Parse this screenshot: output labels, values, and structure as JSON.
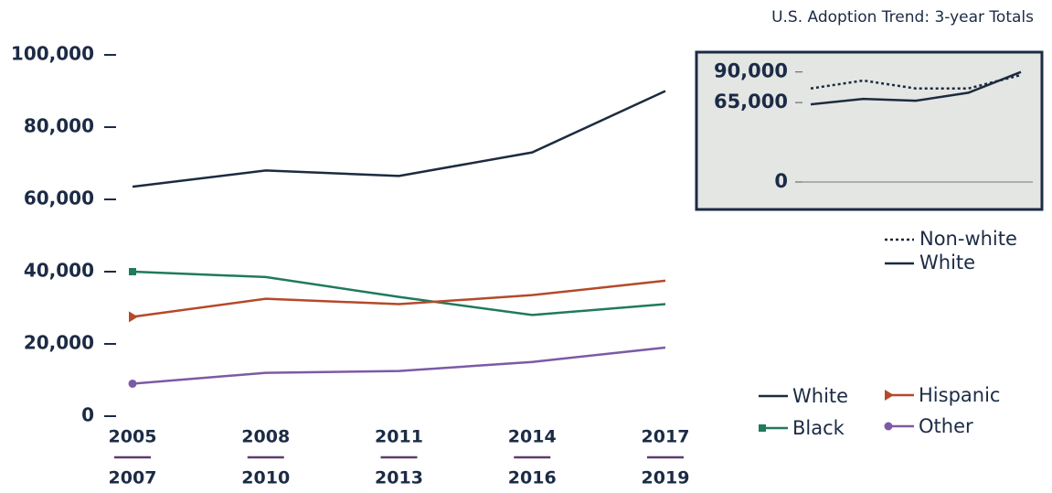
{
  "chart_data": [
    {
      "type": "line",
      "categories": [
        [
          "2005",
          "2007"
        ],
        [
          "2008",
          "2010"
        ],
        [
          "2011",
          "2013"
        ],
        [
          "2014",
          "2016"
        ],
        [
          "2017",
          "2019"
        ]
      ],
      "ylim": [
        0,
        100000
      ],
      "yticks": [
        0,
        {
          "value": 20000,
          "label": "20,000"
        },
        {
          "value": 40000,
          "label": "40,000"
        },
        {
          "value": 60000,
          "label": "60,000"
        },
        {
          "value": 80000,
          "label": "80,000"
        },
        {
          "value": 100000,
          "label": "100,000"
        }
      ],
      "series": [
        {
          "name": "White",
          "color": "#1c2b3f",
          "marker": "none",
          "values": [
            63500,
            68000,
            66500,
            73000,
            90000
          ]
        },
        {
          "name": "Black",
          "color": "#1f7a5e",
          "marker": "square",
          "values": [
            40000,
            38500,
            33000,
            28000,
            31000
          ]
        },
        {
          "name": "Hispanic",
          "color": "#b5492a",
          "marker": "triangle",
          "values": [
            27500,
            32500,
            31000,
            33500,
            37500
          ]
        },
        {
          "name": "Other",
          "color": "#7b5aa6",
          "marker": "circle",
          "values": [
            9000,
            12000,
            12500,
            15000,
            19000
          ]
        }
      ]
    },
    {
      "type": "line",
      "title": "U.S. Adoption Trend: 3-year Totals",
      "ylim": [
        0,
        95000
      ],
      "yticks": [
        0,
        {
          "value": 65000,
          "label": "65,000"
        },
        {
          "value": 90000,
          "label": "90,000"
        }
      ],
      "series": [
        {
          "name": "Non-white",
          "color": "#1c2b3f",
          "dash": true,
          "values": [
            76500,
            83000,
            76500,
            76500,
            87500
          ]
        },
        {
          "name": "White",
          "color": "#1c2b3f",
          "dash": false,
          "values": [
            63500,
            68000,
            66500,
            73000,
            90000
          ]
        }
      ]
    }
  ]
}
